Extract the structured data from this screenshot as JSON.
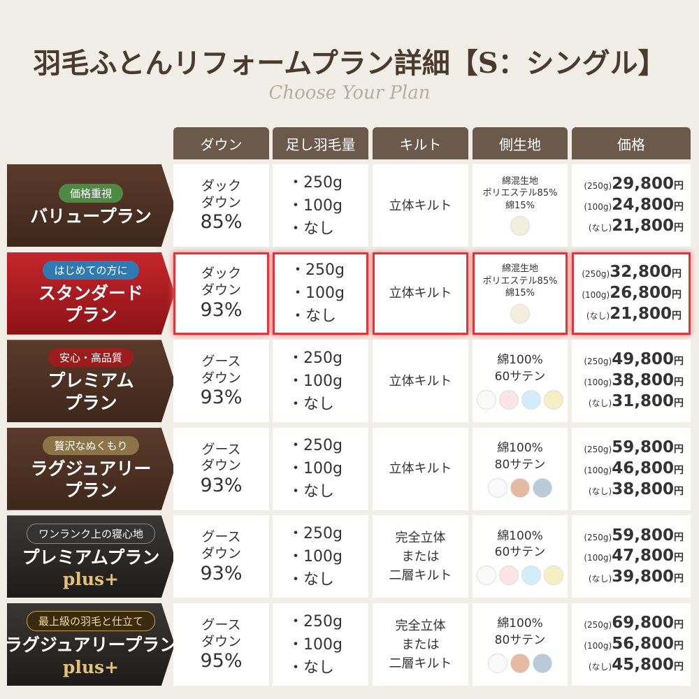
{
  "header": {
    "title": "羽毛ふとんリフォームプラン詳細【S：シングル】",
    "subtitle": "Choose Your Plan"
  },
  "columns": [
    "ダウン",
    "足し羽毛量",
    "キルト",
    "側生地",
    "価格"
  ],
  "plans": [
    {
      "badge": "価格重視",
      "name": [
        "バリュープラン"
      ],
      "down": [
        "ダック",
        "ダウン"
      ],
      "percent": "85%",
      "amounts": [
        "・250g",
        "・100g",
        "・なし"
      ],
      "quilt": [
        "立体キルト"
      ],
      "fabric": [
        "綿混生地",
        "ポリエステル85%",
        "綿15%"
      ],
      "swatches": [
        "#f3efdc"
      ],
      "prices": [
        {
          "amount": "(250g)",
          "price": "29,800",
          "yen": "円"
        },
        {
          "amount": "(100g)",
          "price": "24,800",
          "yen": "円"
        },
        {
          "amount": "(なし)",
          "price": "21,800",
          "yen": "円"
        }
      ]
    },
    {
      "badge": "はじめての方に",
      "name": [
        "スタンダード",
        "プラン"
      ],
      "down": [
        "ダック",
        "ダウン"
      ],
      "percent": "93%",
      "amounts": [
        "・250g",
        "・100g",
        "・なし"
      ],
      "quilt": [
        "立体キルト"
      ],
      "fabric": [
        "綿混生地",
        "ポリエステル85%",
        "綿15%"
      ],
      "swatches": [
        "#f3efdc"
      ],
      "prices": [
        {
          "amount": "(250g)",
          "price": "32,800",
          "yen": "円"
        },
        {
          "amount": "(100g)",
          "price": "26,800",
          "yen": "円"
        },
        {
          "amount": "(なし)",
          "price": "21,800",
          "yen": "円"
        }
      ]
    },
    {
      "badge": "安心・高品質",
      "name": [
        "プレミアム",
        "プラン"
      ],
      "down": [
        "グース",
        "ダウン"
      ],
      "percent": "93%",
      "amounts": [
        "・250g",
        "・100g",
        "・なし"
      ],
      "quilt": [
        "立体キルト"
      ],
      "fabric": [
        "綿100%",
        "60サテン"
      ],
      "swatches": [
        "#fafafa",
        "#fbe3e6",
        "#d3ecfb",
        "#f7efc4"
      ],
      "prices": [
        {
          "amount": "(250g)",
          "price": "49,800",
          "yen": "円"
        },
        {
          "amount": "(100g)",
          "price": "38,800",
          "yen": "円"
        },
        {
          "amount": "(なし)",
          "price": "31,800",
          "yen": "円"
        }
      ]
    },
    {
      "badge": "贅沢なぬくもり",
      "name": [
        "ラグジュアリー",
        "プラン"
      ],
      "down": [
        "グース",
        "ダウン"
      ],
      "percent": "93%",
      "amounts": [
        "・250g",
        "・100g",
        "・なし"
      ],
      "quilt": [
        "立体キルト"
      ],
      "fabric": [
        "綿100%",
        "80サテン"
      ],
      "swatches": [
        "#fafafa",
        "#e6b9a0",
        "#b9cbd9"
      ],
      "prices": [
        {
          "amount": "(250g)",
          "price": "59,800",
          "yen": "円"
        },
        {
          "amount": "(100g)",
          "price": "46,800",
          "yen": "円"
        },
        {
          "amount": "(なし)",
          "price": "38,800",
          "yen": "円"
        }
      ]
    },
    {
      "badge": "ワンランク上の寝心地",
      "name": [
        "プレミアムプラン",
        "plus+"
      ],
      "down": [
        "グース",
        "ダウン"
      ],
      "percent": "93%",
      "amounts": [
        "・250g",
        "・100g",
        "・なし"
      ],
      "quilt": [
        "完全立体",
        "または",
        "二層キルト"
      ],
      "fabric": [
        "綿100%",
        "60サテン"
      ],
      "swatches": [
        "#fafafa",
        "#fbe3e6",
        "#d3ecfb",
        "#f7efc4"
      ],
      "prices": [
        {
          "amount": "(250g)",
          "price": "59,800",
          "yen": "円"
        },
        {
          "amount": "(100g)",
          "price": "47,800",
          "yen": "円"
        },
        {
          "amount": "(なし)",
          "price": "39,800",
          "yen": "円"
        }
      ]
    },
    {
      "badge": "最上級の羽毛と仕立て",
      "name": [
        "ラグジュアリープラン",
        "plus+"
      ],
      "down": [
        "グース",
        "ダウン"
      ],
      "percent": "95%",
      "amounts": [
        "・250g",
        "・100g",
        "・なし"
      ],
      "quilt": [
        "完全立体",
        "または",
        "二層キルト"
      ],
      "fabric": [
        "綿100%",
        "80サテン"
      ],
      "swatches": [
        "#fafafa",
        "#e6b9a0",
        "#b9cbd9"
      ],
      "prices": [
        {
          "amount": "(250g)",
          "price": "69,800",
          "yen": "円"
        },
        {
          "amount": "(100g)",
          "price": "56,800",
          "yen": "円"
        },
        {
          "amount": "(なし)",
          "price": "45,800",
          "yen": "円"
        }
      ]
    }
  ]
}
